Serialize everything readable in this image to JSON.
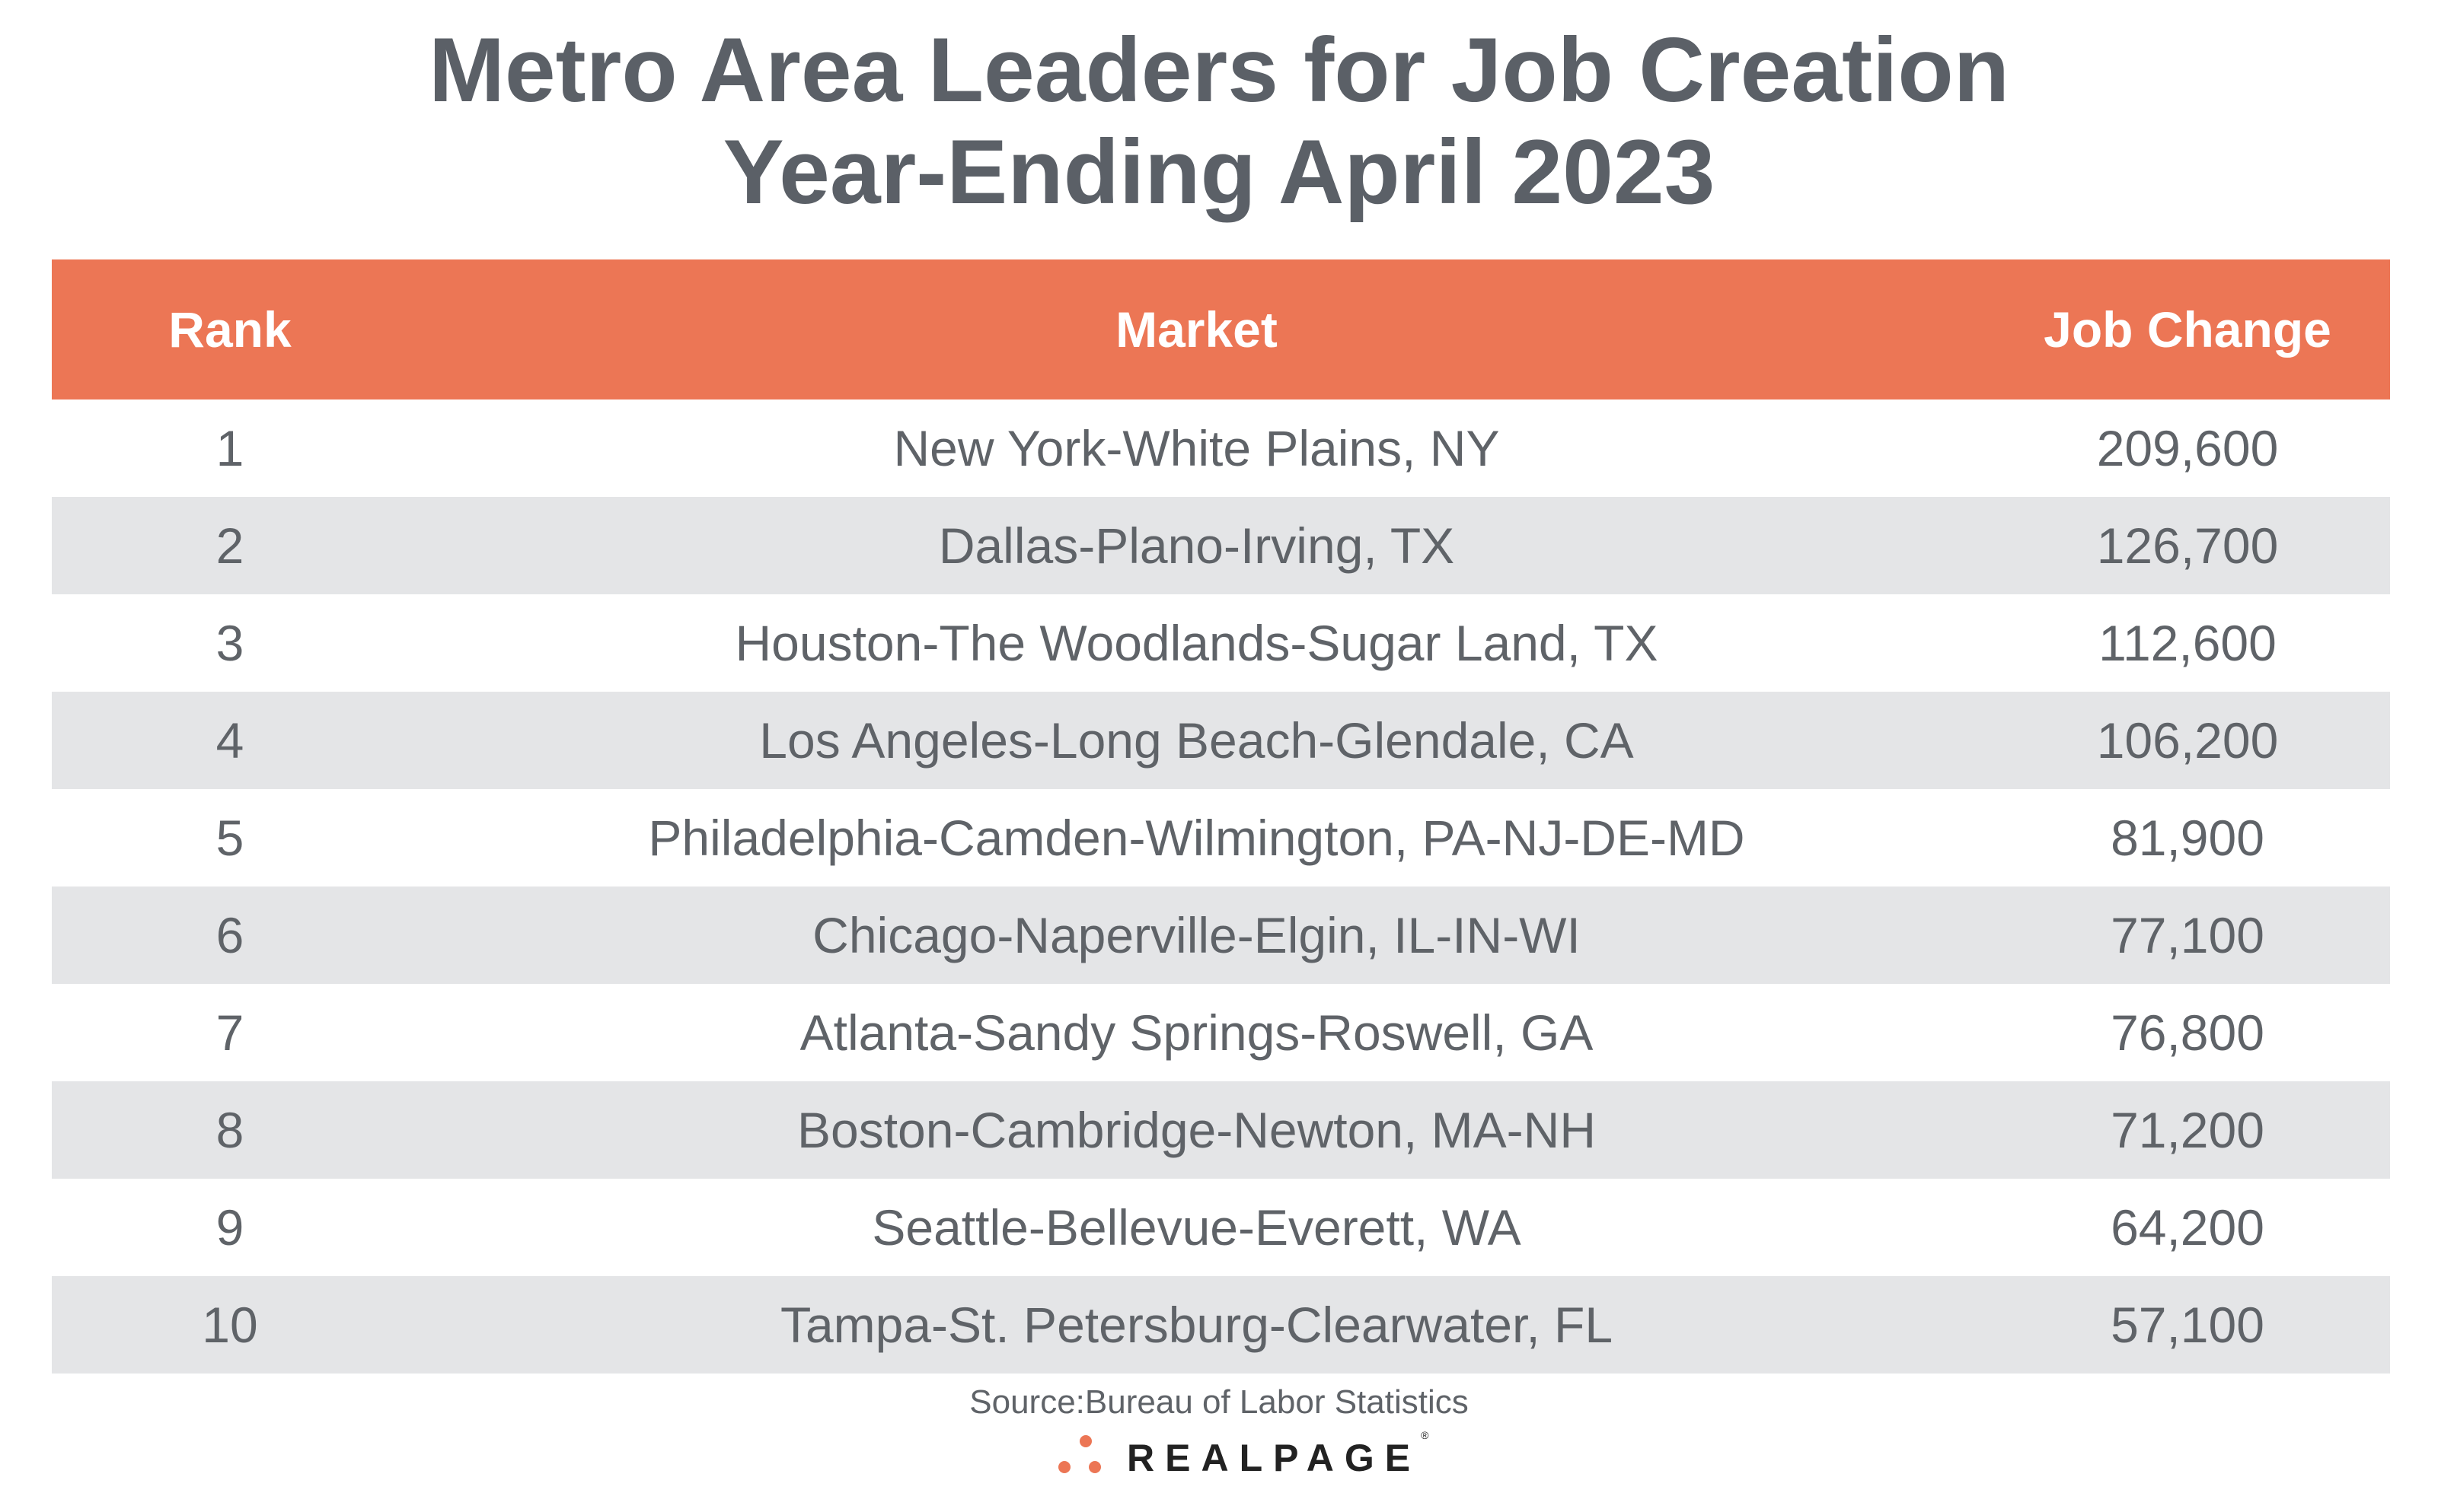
{
  "title": {
    "line1": "Metro Area Leaders for Job Creation",
    "line2": "Year-Ending April 2023"
  },
  "table": {
    "headers": {
      "rank": "Rank",
      "market": "Market",
      "job_change": "Job Change"
    },
    "rows": [
      {
        "rank": "1",
        "market": "New York-White Plains, NY",
        "job_change": "209,600"
      },
      {
        "rank": "2",
        "market": "Dallas-Plano-Irving, TX",
        "job_change": "126,700"
      },
      {
        "rank": "3",
        "market": "Houston-The Woodlands-Sugar Land, TX",
        "job_change": "112,600"
      },
      {
        "rank": "4",
        "market": "Los Angeles-Long Beach-Glendale, CA",
        "job_change": "106,200"
      },
      {
        "rank": "5",
        "market": "Philadelphia-Camden-Wilmington, PA-NJ-DE-MD",
        "job_change": "81,900"
      },
      {
        "rank": "6",
        "market": "Chicago-Naperville-Elgin, IL-IN-WI",
        "job_change": "77,100"
      },
      {
        "rank": "7",
        "market": "Atlanta-Sandy Springs-Roswell, GA",
        "job_change": "76,800"
      },
      {
        "rank": "8",
        "market": "Boston-Cambridge-Newton, MA-NH",
        "job_change": "71,200"
      },
      {
        "rank": "9",
        "market": "Seattle-Bellevue-Everett, WA",
        "job_change": "64,200"
      },
      {
        "rank": "10",
        "market": "Tampa-St. Petersburg-Clearwater, FL",
        "job_change": "57,100"
      }
    ]
  },
  "source": "Source:Bureau of Labor Statistics",
  "logo": {
    "text": "REALPAGE",
    "mark": "®"
  },
  "colors": {
    "header": "#ec7655",
    "stripe": "#e4e5e7",
    "text": "#5f6368"
  }
}
